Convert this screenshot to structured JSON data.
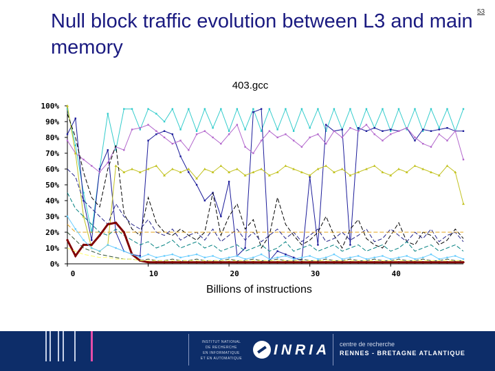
{
  "slide": {
    "title": "Null block traffic evolution between L3 and main memory",
    "number": "53"
  },
  "footer": {
    "institute_lines": [
      "INSTITUT NATIONAL",
      "DE RECHERCHE",
      "EN INFORMATIQUE",
      "ET EN AUTOMATIQUE"
    ],
    "brand": "INRIA",
    "center_line": "centre de recherche",
    "center_name": "RENNES - BRETAGNE ATLANTIQUE"
  },
  "chart_data": {
    "type": "line",
    "title": "403.gcc",
    "xlabel": "Billions of instructions",
    "ylabel": "",
    "xlim": [
      0,
      49
    ],
    "ylim": [
      0,
      100
    ],
    "xticks": [
      0,
      10,
      20,
      30,
      40
    ],
    "yticks": [
      "0%",
      "10%",
      "20%",
      "30%",
      "40%",
      "50%",
      "60%",
      "70%",
      "80%",
      "90%",
      "100%"
    ],
    "grid": false,
    "legend": "none",
    "series": [
      {
        "color": "#33cccc",
        "marker": "square",
        "values": [
          98,
          75,
          45,
          20,
          60,
          95,
          72,
          98,
          98,
          85,
          98,
          95,
          90,
          98,
          85,
          98,
          84,
          98,
          86,
          98,
          84,
          98,
          85,
          98,
          84,
          98,
          85,
          98,
          84,
          98,
          86,
          98,
          84,
          98,
          85,
          98,
          84,
          98,
          86,
          98,
          84,
          98,
          85,
          98,
          84,
          98,
          86,
          98,
          84,
          98
        ]
      },
      {
        "color": "#1a1a99",
        "marker": "square",
        "values": [
          82,
          92,
          40,
          15,
          60,
          72,
          20,
          8,
          6,
          5,
          78,
          82,
          84,
          82,
          68,
          58,
          50,
          40,
          45,
          30,
          52,
          5,
          10,
          96,
          98,
          2,
          8,
          6,
          4,
          2,
          55,
          12,
          88,
          84,
          85,
          12,
          86,
          84,
          86,
          84,
          85,
          84,
          86,
          78,
          85,
          84,
          85,
          86,
          84,
          84
        ]
      },
      {
        "color": "#b266cc",
        "marker": "square",
        "values": [
          78,
          70,
          66,
          62,
          58,
          64,
          74,
          72,
          85,
          86,
          88,
          84,
          80,
          76,
          78,
          72,
          82,
          84,
          80,
          76,
          82,
          88,
          74,
          70,
          78,
          84,
          80,
          82,
          78,
          74,
          80,
          82,
          76,
          84,
          80,
          86,
          84,
          88,
          82,
          78,
          82,
          84,
          86,
          80,
          76,
          74,
          82,
          78,
          84,
          66
        ]
      },
      {
        "color": "#c2c21f",
        "marker": "triangle",
        "values": [
          100,
          70,
          30,
          10,
          8,
          12,
          62,
          58,
          60,
          58,
          60,
          62,
          56,
          60,
          58,
          60,
          54,
          60,
          58,
          62,
          58,
          60,
          56,
          58,
          60,
          56,
          58,
          62,
          60,
          58,
          56,
          60,
          62,
          58,
          60,
          56,
          58,
          60,
          62,
          58,
          56,
          60,
          58,
          62,
          60,
          58,
          56,
          62,
          58,
          38
        ]
      },
      {
        "color": "#000000",
        "marker": "dash",
        "values": [
          95,
          80,
          58,
          42,
          36,
          60,
          75,
          32,
          22,
          18,
          42,
          26,
          20,
          18,
          22,
          18,
          15,
          20,
          45,
          18,
          30,
          38,
          22,
          28,
          10,
          18,
          42,
          25,
          18,
          12,
          15,
          20,
          30,
          18,
          10,
          22,
          28,
          16,
          12,
          10,
          18,
          26,
          14,
          12,
          20,
          18,
          12,
          15,
          22,
          16
        ]
      },
      {
        "color": "#222288",
        "marker": "dash",
        "values": [
          60,
          55,
          40,
          35,
          30,
          25,
          38,
          30,
          25,
          22,
          28,
          20,
          18,
          22,
          15,
          18,
          20,
          15,
          22,
          14,
          18,
          22,
          15,
          20,
          14,
          18,
          22,
          16,
          20,
          14,
          18,
          22,
          14,
          16,
          20,
          15,
          18,
          22,
          14,
          16,
          22,
          18,
          14,
          20,
          16,
          22,
          14,
          18,
          20,
          14
        ]
      },
      {
        "color": "#008080",
        "marker": "dash",
        "values": [
          45,
          35,
          30,
          25,
          20,
          18,
          22,
          18,
          15,
          12,
          14,
          10,
          12,
          15,
          10,
          12,
          14,
          10,
          12,
          8,
          10,
          12,
          8,
          10,
          12,
          8,
          10,
          14,
          8,
          10,
          12,
          8,
          10,
          12,
          8,
          10,
          12,
          8,
          10,
          12,
          8,
          10,
          14,
          8,
          10,
          12,
          8,
          10,
          12,
          8
        ]
      },
      {
        "color": "#e3a21a",
        "marker": "dash",
        "values": [
          25,
          20,
          20,
          20,
          20,
          20,
          20,
          20,
          20,
          20,
          20,
          20,
          20,
          20,
          20,
          20,
          20,
          20,
          20,
          20,
          20,
          20,
          20,
          20,
          20,
          20,
          20,
          20,
          20,
          20,
          20,
          20,
          20,
          20,
          20,
          20,
          20,
          20,
          20,
          20,
          20,
          20,
          20,
          20,
          20,
          20,
          20,
          20,
          20,
          20
        ]
      },
      {
        "color": "#800000",
        "marker": "circle",
        "values": [
          15,
          5,
          12,
          12,
          18,
          25,
          26,
          20,
          6,
          2,
          1,
          1,
          1,
          1,
          1,
          1,
          1,
          1,
          1,
          1,
          1,
          1,
          1,
          1,
          1,
          1,
          1,
          1,
          1,
          1,
          1,
          1,
          1,
          1,
          1,
          1,
          1,
          1,
          1,
          1,
          1,
          1,
          1,
          1,
          1,
          1,
          1,
          1,
          1,
          1
        ]
      },
      {
        "color": "#66ccff",
        "marker": "square",
        "values": [
          30,
          22,
          15,
          10,
          8,
          12,
          10,
          8,
          6,
          4,
          6,
          4,
          5,
          6,
          4,
          5,
          6,
          4,
          5,
          3,
          4,
          5,
          3,
          4,
          6,
          3,
          4,
          5,
          3,
          4,
          5,
          3,
          4,
          6,
          3,
          4,
          5,
          3,
          4,
          5,
          3,
          4,
          5,
          3,
          4,
          6,
          3,
          4,
          5,
          3
        ]
      },
      {
        "color": "#2f4f2f",
        "marker": "dash",
        "values": [
          20,
          15,
          10,
          8,
          6,
          5,
          4,
          3,
          3,
          2,
          3,
          2,
          2,
          3,
          2,
          2,
          3,
          2,
          2,
          2,
          3,
          2,
          2,
          3,
          2,
          2,
          3,
          2,
          2,
          3,
          2,
          2,
          3,
          2,
          2,
          3,
          2,
          2,
          3,
          2,
          2,
          3,
          2,
          2,
          3,
          2,
          2,
          3,
          2,
          2
        ]
      },
      {
        "color": "#ffff66",
        "marker": "dash",
        "values": [
          10,
          8,
          6,
          5,
          4,
          4,
          3,
          3,
          3,
          2,
          2,
          2,
          2,
          2,
          2,
          2,
          2,
          2,
          2,
          2,
          2,
          2,
          2,
          2,
          2,
          2,
          2,
          2,
          2,
          2,
          2,
          2,
          2,
          2,
          2,
          2,
          2,
          2,
          2,
          2,
          2,
          2,
          2,
          2,
          2,
          2,
          2,
          2,
          2,
          2
        ]
      }
    ]
  }
}
